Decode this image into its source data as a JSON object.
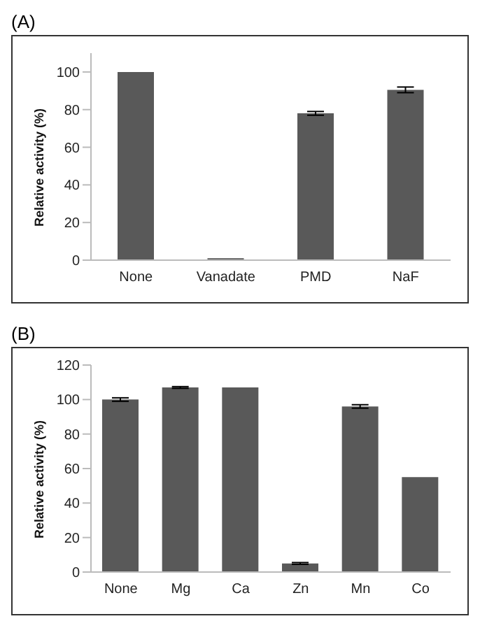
{
  "chart_data": [
    {
      "type": "bar",
      "title": "(A)",
      "ylabel": "Relative activity (%)",
      "categories": [
        "None",
        "Vanadate",
        "PMD",
        "NaF"
      ],
      "values": [
        100,
        1,
        78,
        90.5
      ],
      "errors": [
        null,
        null,
        1,
        1.5
      ],
      "color": "#595959",
      "ylim": [
        0,
        110
      ],
      "yticks": [
        0,
        20,
        40,
        60,
        80,
        100
      ],
      "grid": false,
      "legend": false
    },
    {
      "type": "bar",
      "title": "(B)",
      "ylabel": "Relative activity (%)",
      "categories": [
        "None",
        "Mg",
        "Ca",
        "Zn",
        "Mn",
        "Co"
      ],
      "values": [
        100,
        107,
        107,
        5,
        96,
        55
      ],
      "errors": [
        1,
        0.5,
        null,
        0.5,
        1,
        null
      ],
      "color": "#595959",
      "ylim": [
        0,
        120
      ],
      "yticks": [
        0,
        20,
        40,
        60,
        80,
        100,
        120
      ],
      "grid": false,
      "legend": false
    }
  ]
}
